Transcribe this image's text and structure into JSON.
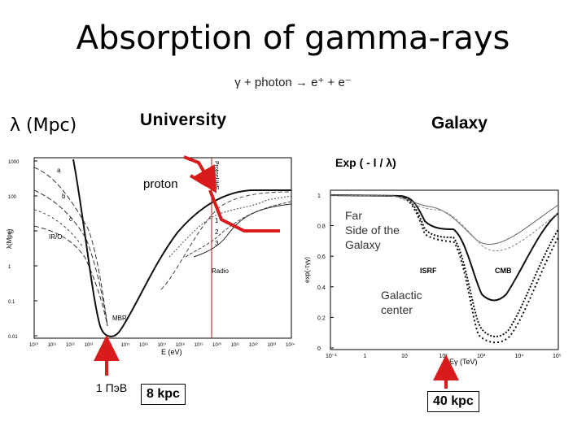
{
  "slide": {
    "title": "Absorption of gamma-rays",
    "reaction": "γ + photon → e⁺ + e⁻",
    "lambda_label": "λ (Mpc)",
    "universe_label": "University",
    "galaxy_label": "Galaxy",
    "exp_label": "Exp ( - l / λ)",
    "proton_label": "proton",
    "pev_label": "1 ПэВ",
    "kpc8_label": "8 kpc",
    "kpc40_label": "40 kpc"
  },
  "colors": {
    "arrow": "#d81b1b",
    "vline": "#a11a1a",
    "frame": "#000000",
    "curve": "#111111"
  },
  "chart_data": [
    {
      "type": "line",
      "title": "",
      "xlabel": "E (eV)",
      "ylabel": "λ(Mpc)",
      "x_ticks": [
        "10¹⁰",
        "10¹¹",
        "10¹²",
        "10¹³",
        "10¹⁴",
        "10¹⁵",
        "10¹⁶",
        "10¹⁷",
        "10¹⁸",
        "10¹⁹",
        "10²⁰",
        "10²¹",
        "10²²",
        "10²³",
        "10²⁴"
      ],
      "y_ticks": [
        "1000",
        "100",
        "10",
        "1",
        "0.1",
        "0.01"
      ],
      "annotations": [
        "a",
        "b",
        "c",
        "IR/O",
        "MBR",
        "Radio",
        "ProtonUHE",
        "1",
        "2",
        "3"
      ],
      "series": [
        {
          "label": "a",
          "log10_E": [
            10,
            11,
            12,
            13,
            14,
            15,
            16
          ],
          "log10_lambda": [
            2.7,
            2.2,
            1.6,
            0.9,
            0.2,
            -0.7,
            -1.8
          ]
        },
        {
          "label": "b",
          "log10_E": [
            10,
            11,
            12,
            13,
            14,
            15,
            16
          ],
          "log10_lambda": [
            2.3,
            1.8,
            1.3,
            0.8,
            0.2,
            -0.6,
            -1.8
          ]
        },
        {
          "label": "c",
          "log10_E": [
            10,
            11,
            12,
            13,
            14,
            15,
            16
          ],
          "log10_lambda": [
            1.8,
            1.3,
            1.0,
            0.6,
            0.0,
            -0.8,
            -1.8
          ]
        },
        {
          "label": "MBR",
          "log10_E": [
            14,
            15,
            15.5,
            16,
            16.5,
            17,
            18,
            19,
            20,
            21,
            22,
            23,
            24
          ],
          "log10_lambda": [
            1.0,
            -0.8,
            -1.7,
            -1.9,
            -1.6,
            -1.2,
            -0.3,
            0.6,
            1.3,
            1.9,
            2.2,
            2.3,
            2.3
          ]
        }
      ]
    },
    {
      "type": "line",
      "title": "",
      "xlabel": "Eγ (TeV)",
      "ylabel": "exp(-τγγ)",
      "x_ticks": [
        "10⁻¹",
        "1",
        "10",
        "10²",
        "10³",
        "10⁴",
        "10⁵"
      ],
      "y_ticks": [
        "1",
        "0.8",
        "0.6",
        "0.4",
        "0.2",
        "0"
      ],
      "annotations": [
        "Far Side of the Galaxy",
        "ISRF",
        "CMB",
        "Galactic center"
      ],
      "series": [
        {
          "label": "Far Side of the Galaxy",
          "log10_E": [
            -1,
            0,
            1,
            1.5,
            2,
            2.5,
            3,
            3.5,
            4,
            5
          ],
          "exp": [
            1.0,
            0.99,
            0.88,
            0.66,
            0.58,
            0.3,
            0.08,
            0.05,
            0.15,
            0.55
          ]
        },
        {
          "label": "Galactic center",
          "log10_E": [
            -1,
            0,
            1,
            1.5,
            2,
            2.5,
            3,
            3.5,
            4,
            5
          ],
          "exp": [
            1.0,
            0.99,
            0.95,
            0.9,
            0.87,
            0.4,
            0.23,
            0.22,
            0.35,
            0.72
          ]
        }
      ]
    }
  ]
}
